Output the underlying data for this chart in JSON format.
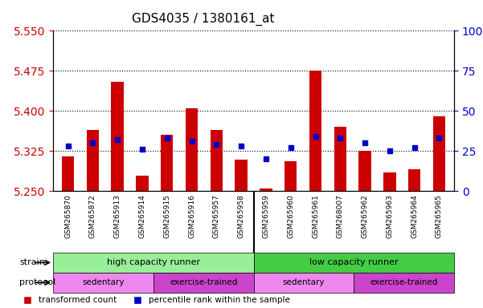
{
  "title": "GDS4035 / 1380161_at",
  "samples": [
    "GSM265870",
    "GSM265872",
    "GSM265913",
    "GSM265914",
    "GSM265915",
    "GSM265916",
    "GSM265957",
    "GSM265958",
    "GSM265959",
    "GSM265960",
    "GSM265961",
    "GSM268007",
    "GSM265962",
    "GSM265963",
    "GSM265964",
    "GSM265965"
  ],
  "transformed_count": [
    5.315,
    5.365,
    5.455,
    5.278,
    5.355,
    5.405,
    5.365,
    5.308,
    5.255,
    5.305,
    5.475,
    5.37,
    5.325,
    5.285,
    5.29,
    5.39
  ],
  "percentile_rank": [
    28,
    30,
    32,
    26,
    33,
    31,
    29,
    28,
    20,
    27,
    34,
    33,
    30,
    25,
    27,
    33
  ],
  "ylim_left": [
    5.25,
    5.55
  ],
  "ylim_right": [
    0,
    100
  ],
  "yticks_left": [
    5.25,
    5.325,
    5.4,
    5.475,
    5.55
  ],
  "yticks_right": [
    0,
    25,
    50,
    75,
    100
  ],
  "bar_base": 5.25,
  "bar_color": "#cc0000",
  "dot_color": "#0000cc",
  "grid_color": "#000000",
  "strain_high_label": "high capacity runner",
  "strain_low_label": "low capacity runner",
  "strain_high_color": "#99ee99",
  "strain_low_color": "#44cc44",
  "protocol_sed_color": "#ee88ee",
  "protocol_ex_color": "#cc44cc",
  "protocol_sed_label": "sedentary",
  "protocol_ex_label": "exercise-trained",
  "label_strain": "strain",
  "label_protocol": "protocol",
  "legend_red": "transformed count",
  "legend_blue": "percentile rank within the sample",
  "left_tick_color": "#cc0000",
  "right_tick_color": "#0000cc",
  "background_color": "#ffffff",
  "xticklabel_bg": "#dddddd"
}
